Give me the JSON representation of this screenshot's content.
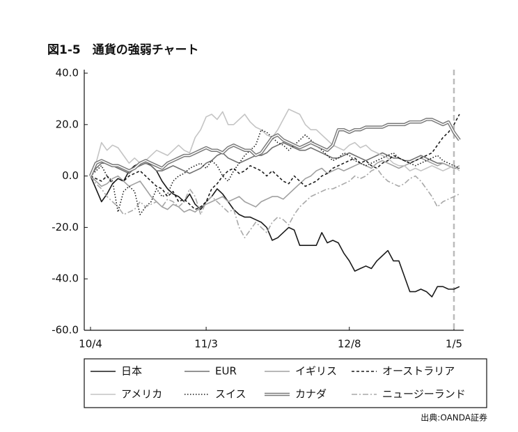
{
  "chart_data": {
    "type": "line",
    "title": "図1-5　通貨の強弱チャート",
    "source": "出典:OANDA証券",
    "categories": [
      "10/4",
      null,
      null,
      null,
      null,
      null,
      null,
      null,
      null,
      null,
      null,
      null,
      null,
      null,
      null,
      null,
      null,
      null,
      null,
      null,
      null,
      "11/3",
      null,
      null,
      null,
      null,
      null,
      null,
      null,
      null,
      null,
      null,
      null,
      null,
      null,
      null,
      null,
      null,
      null,
      null,
      null,
      null,
      null,
      null,
      null,
      null,
      null,
      "12/8",
      null,
      null,
      null,
      null,
      null,
      null,
      null,
      null,
      null,
      null,
      null,
      null,
      null,
      null,
      null,
      null,
      null,
      null,
      "1/5",
      null
    ],
    "ylim": [
      -60,
      40
    ],
    "yticks": [
      {
        "value": 40,
        "label": "40.0"
      },
      {
        "value": 20,
        "label": "20.0"
      },
      {
        "value": 0,
        "label": "0.0"
      },
      {
        "value": -20,
        "label": "-20.0"
      },
      {
        "value": -40,
        "label": "-40.0"
      },
      {
        "value": -60,
        "label": "-60.0"
      }
    ],
    "series": [
      {
        "name": "日本",
        "color": "#1a1a1a",
        "style": "solid",
        "values": [
          0,
          -5,
          -10,
          -7,
          -3,
          -1,
          -2,
          2,
          4,
          5,
          6,
          4,
          2,
          -2,
          -5,
          -7,
          -8,
          -10,
          -7,
          -11,
          -13,
          -10,
          -8,
          -5,
          -7,
          -10,
          -13,
          -15,
          -16,
          -16,
          -17,
          -18,
          -20,
          -25,
          -24,
          -22,
          -20,
          -21,
          -27,
          -27,
          -27,
          -27,
          -22,
          -26,
          -25,
          -26,
          -30,
          -33,
          -37,
          -36,
          -35,
          -36,
          -33,
          -31,
          -29,
          -33,
          -33,
          -39,
          -45,
          -45,
          -44,
          -45,
          -47,
          -43,
          -43,
          -44,
          -44,
          -43
        ]
      },
      {
        "name": "EUR",
        "color": "#707070",
        "style": "solid",
        "values": [
          0,
          3,
          5,
          5,
          4,
          3,
          2,
          1,
          3,
          4,
          5,
          4,
          2,
          2,
          3,
          4,
          3,
          2,
          1,
          2,
          3,
          5,
          6,
          8,
          9,
          7,
          6,
          5,
          6,
          7,
          8,
          8,
          9,
          11,
          12,
          13,
          12,
          11,
          10,
          10,
          11,
          10,
          9,
          8,
          7,
          7,
          8,
          9,
          8,
          7,
          6,
          7,
          8,
          9,
          8,
          7,
          7,
          6,
          6,
          7,
          8,
          7,
          6,
          5,
          5,
          4,
          3,
          3
        ]
      },
      {
        "name": "イギリス",
        "color": "#a0a0a0",
        "style": "solid",
        "values": [
          0,
          -2,
          -4,
          -3,
          -1,
          0,
          -2,
          -4,
          -3,
          -2,
          -5,
          -8,
          -10,
          -12,
          -13,
          -11,
          -12,
          -14,
          -13,
          -14,
          -12,
          -11,
          -10,
          -9,
          -8,
          -10,
          -9,
          -8,
          -10,
          -11,
          -12,
          -10,
          -9,
          -8,
          -8,
          -9,
          -7,
          -5,
          -3,
          -1,
          0,
          2,
          3,
          1,
          2,
          3,
          2,
          3,
          4,
          5,
          4,
          3,
          5,
          6,
          5,
          4,
          3,
          4,
          5,
          6,
          7,
          6,
          5,
          4,
          5,
          4,
          3,
          4
        ]
      },
      {
        "name": "オーストラリア",
        "color": "#1a1a1a",
        "style": "dashed",
        "values": [
          0,
          -1,
          -2,
          0,
          -3,
          -1,
          -2,
          0,
          1,
          2,
          0,
          -2,
          -4,
          -5,
          -8,
          -6,
          -10,
          -9,
          -11,
          -13,
          -12,
          -10,
          -5,
          -3,
          0,
          2,
          3,
          1,
          2,
          4,
          3,
          2,
          0,
          2,
          0,
          -2,
          -3,
          0,
          -2,
          -4,
          -3,
          -2,
          0,
          1,
          3,
          4,
          5,
          6,
          7,
          5,
          6,
          4,
          3,
          5,
          6,
          8,
          7,
          6,
          5,
          6,
          7,
          8,
          9,
          12,
          15,
          17,
          20,
          24
        ]
      },
      {
        "name": "アメリカ",
        "color": "#c4c4c4",
        "style": "solid",
        "values": [
          0,
          5,
          13,
          10,
          12,
          11,
          8,
          5,
          7,
          5,
          6,
          8,
          10,
          9,
          8,
          10,
          12,
          10,
          9,
          15,
          18,
          23,
          24,
          22,
          25,
          20,
          20,
          22,
          24,
          21,
          19,
          18,
          16,
          15,
          18,
          22,
          26,
          25,
          24,
          20,
          18,
          18,
          16,
          14,
          12,
          11,
          10,
          12,
          13,
          11,
          12,
          10,
          9,
          8,
          7,
          5,
          4,
          4,
          2,
          3,
          2,
          3,
          4,
          3,
          2,
          3,
          4,
          2
        ]
      },
      {
        "name": "スイス",
        "color": "#1a1a1a",
        "style": "dotted",
        "values": [
          0,
          2,
          4,
          0,
          -2,
          -14,
          -6,
          -4,
          -6,
          -15,
          -12,
          -10,
          -5,
          -8,
          -7,
          -2,
          0,
          1,
          3,
          4,
          5,
          3,
          6,
          4,
          0,
          -2,
          2,
          5,
          8,
          10,
          12,
          18,
          17,
          15,
          13,
          12,
          10,
          12,
          14,
          16,
          14,
          12,
          10,
          8,
          6,
          7,
          9,
          8,
          6,
          5,
          4,
          5,
          6,
          7,
          8,
          9,
          7,
          6,
          5,
          4,
          5,
          6,
          7,
          8,
          6,
          5,
          4,
          3
        ]
      },
      {
        "name": "カナダ",
        "color": "#787878",
        "style": "double",
        "values": [
          0,
          5,
          6,
          5,
          4,
          4,
          3,
          2,
          3,
          5,
          6,
          5,
          4,
          3,
          5,
          6,
          7,
          8,
          8,
          9,
          10,
          11,
          10,
          10,
          9,
          11,
          12,
          11,
          10,
          10,
          8,
          9,
          12,
          15,
          16,
          14,
          13,
          12,
          11,
          12,
          13,
          12,
          11,
          10,
          12,
          18,
          18,
          17,
          18,
          18,
          19,
          19,
          19,
          19,
          20,
          20,
          20,
          20,
          21,
          21,
          21,
          22,
          22,
          21,
          20,
          21,
          17,
          14
        ]
      },
      {
        "name": "ニュージーランド",
        "color": "#a8a8a8",
        "style": "dashdot",
        "values": [
          0,
          -3,
          -5,
          -8,
          -10,
          -12,
          -15,
          -14,
          -13,
          -10,
          -12,
          -11,
          -10,
          -12,
          -9,
          -10,
          -12,
          -10,
          -5,
          -8,
          -15,
          -10,
          -8,
          -10,
          -12,
          -14,
          -13,
          -20,
          -24,
          -21,
          -18,
          -20,
          -22,
          -18,
          -16,
          -17,
          -19,
          -15,
          -12,
          -10,
          -8,
          -7,
          -6,
          -5,
          -5,
          -4,
          -3,
          -2,
          0,
          -1,
          0,
          2,
          3,
          0,
          -2,
          -3,
          -4,
          -3,
          -1,
          0,
          -2,
          -5,
          -8,
          -12,
          -10,
          -9,
          -8,
          -7
        ]
      }
    ]
  }
}
